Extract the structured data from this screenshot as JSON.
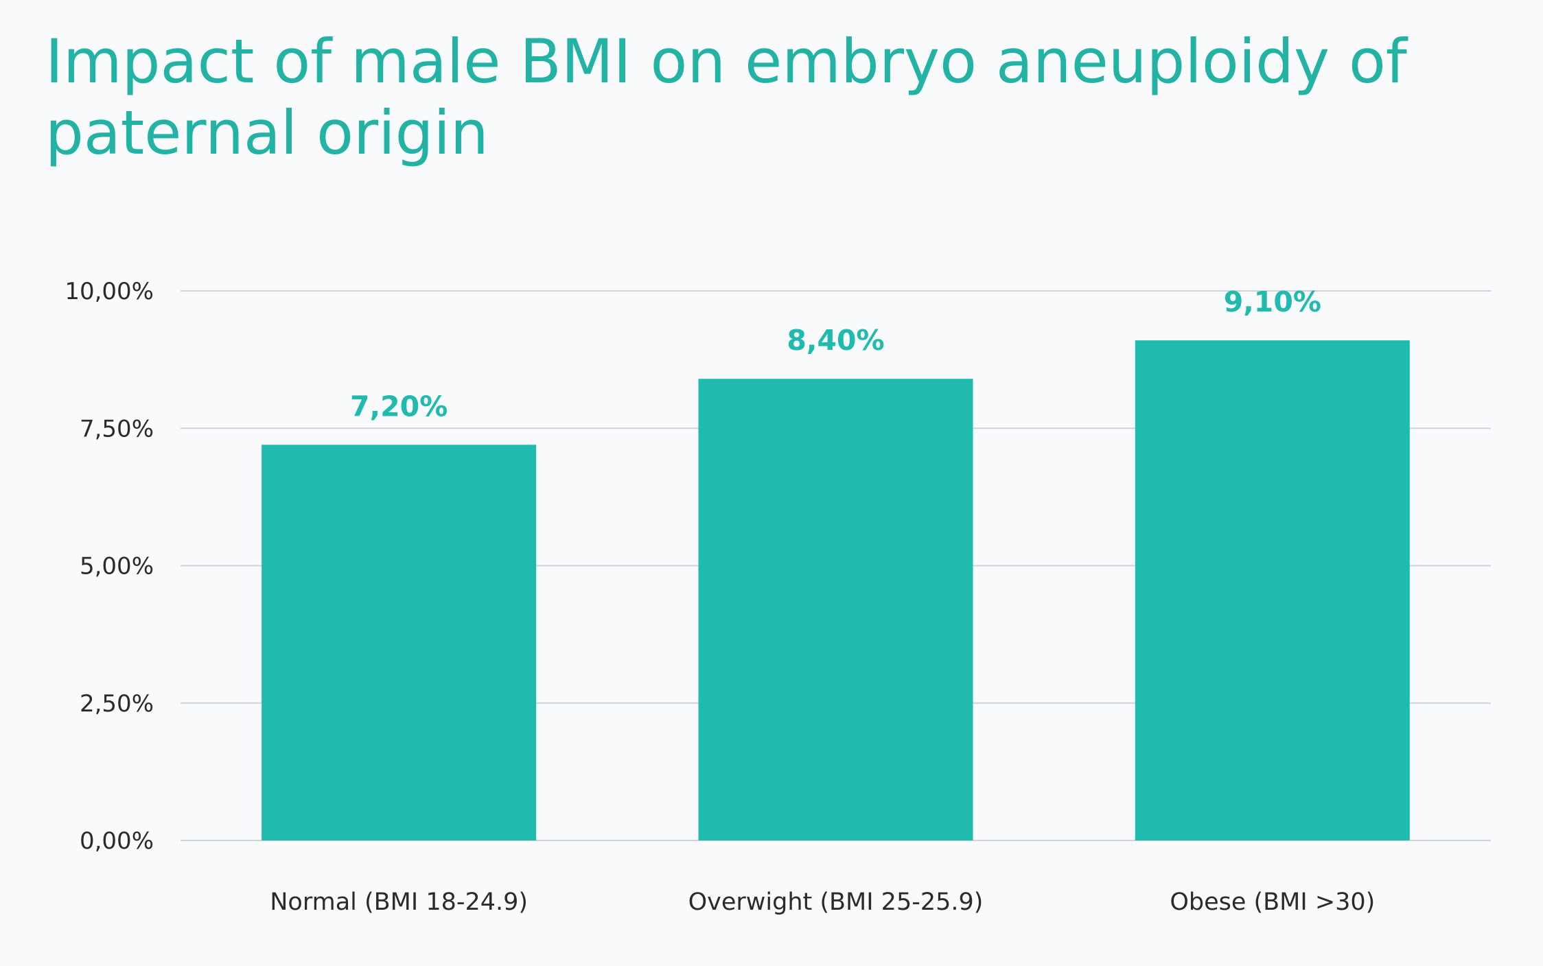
{
  "chart_data": {
    "type": "bar",
    "title": "Impact of male BMI on embryo aneuploidy of paternal origin",
    "xlabel": "",
    "ylabel": "",
    "categories": [
      "Normal (BMI 18-24.9)",
      "Overwight (BMI 25-25.9)",
      "Obese (BMI >30)"
    ],
    "values": [
      7.2,
      8.4,
      9.1
    ],
    "data_labels": [
      "7,20%",
      "8,40%",
      "9,10%"
    ],
    "ylim": [
      0,
      10
    ],
    "yticks": [
      0,
      2.5,
      5,
      7.5,
      10
    ],
    "ytick_labels": [
      "0,00%",
      "2,50%",
      "5,00%",
      "7,50%",
      "10,00%"
    ],
    "grid": true,
    "legend": "none",
    "bar_color": "#1fbbae",
    "label_color": "#1fbbae",
    "title_color": "#22b3a5",
    "grid_color": "#cfd3d8",
    "text_color": "#2b2b2b"
  }
}
